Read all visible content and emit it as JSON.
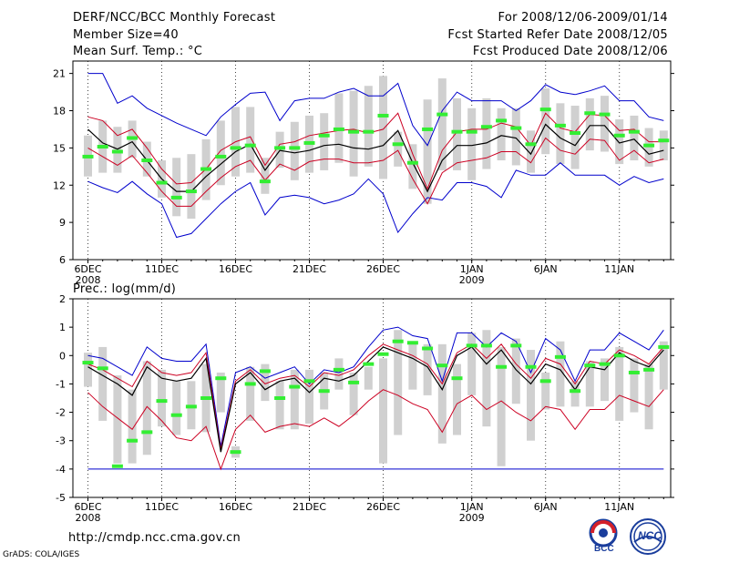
{
  "header": {
    "title": "DERF/NCC/BCC Monthly Forecast",
    "member_size": "Member Size=40",
    "variable1": "Mean Surf. Temp.: °C",
    "for_range": "For 2008/12/06-2009/01/14",
    "refer_date": "Fcst Started Refer Date 2008/12/05",
    "produced_date": "Fcst Produced Date 2008/12/06"
  },
  "footer": {
    "url": "http://cmdp.ncc.cma.gov.cn",
    "grads": "GrADS: COLA/IGES",
    "logo_bcc": "BCC",
    "logo_ncc": "NCC"
  },
  "colors": {
    "max_min": "#0000cc",
    "spread": "#cc0022",
    "mean": "#000000",
    "median": "#33ee33",
    "box": "#d0d0d0"
  },
  "chart_data": [
    {
      "type": "box",
      "title": "Mean Surf. Temp.: °C",
      "ylim": [
        6,
        22
      ],
      "yticks": [
        6,
        9,
        12,
        15,
        18,
        21
      ],
      "xticks": [
        {
          "day": 0,
          "label": "6DEC",
          "sub": "2008"
        },
        {
          "day": 5,
          "label": "11DEC",
          "sub": ""
        },
        {
          "day": 10,
          "label": "16DEC",
          "sub": ""
        },
        {
          "day": 15,
          "label": "21DEC",
          "sub": ""
        },
        {
          "day": 20,
          "label": "26DEC",
          "sub": ""
        },
        {
          "day": 26,
          "label": "1JAN",
          "sub": "2009"
        },
        {
          "day": 31,
          "label": "6JAN",
          "sub": ""
        },
        {
          "day": 36,
          "label": "11JAN",
          "sub": ""
        }
      ],
      "series": [
        {
          "name": "max",
          "values": [
            21,
            21,
            18.6,
            19.2,
            18.2,
            17.6,
            17,
            16.5,
            16,
            17.5,
            18.5,
            19.4,
            19.5,
            17.2,
            18.8,
            19,
            19,
            19.5,
            19.8,
            19.2,
            19.2,
            20.2,
            16.8,
            15.2,
            18,
            19.5,
            18.8,
            18.8,
            18.8,
            18,
            18.8,
            20.1,
            19.5,
            19.3,
            19.6,
            20,
            18.8,
            18.8,
            17.5,
            17.2
          ]
        },
        {
          "name": "upper",
          "values": [
            17.5,
            17.2,
            16,
            16.5,
            15,
            13.3,
            12.1,
            12.2,
            13.3,
            14.8,
            15.5,
            15.9,
            13.6,
            15.3,
            15.5,
            16,
            16.2,
            16.4,
            16.5,
            16.2,
            16.5,
            17.8,
            14.5,
            11.7,
            14.8,
            16.3,
            16.5,
            16.5,
            17,
            16.7,
            15.2,
            17.8,
            16.6,
            16.3,
            17.7,
            17.6,
            16.4,
            16.5,
            15.5,
            15.5
          ]
        },
        {
          "name": "mean",
          "values": [
            16.5,
            15.4,
            14.9,
            15.5,
            14,
            12.5,
            11.5,
            11.5,
            12.7,
            13.7,
            14.7,
            15.3,
            13.2,
            14.8,
            14.6,
            14.8,
            15.2,
            15.3,
            15,
            14.9,
            15.2,
            16.4,
            13.8,
            11.5,
            14,
            15.2,
            15.2,
            15.4,
            16,
            15.8,
            14.5,
            16.9,
            15.8,
            15.2,
            16.8,
            16.8,
            15.4,
            15.7,
            14.5,
            14.8
          ]
        },
        {
          "name": "lower",
          "values": [
            15,
            14.3,
            13.6,
            14.4,
            13,
            11.5,
            10.3,
            10.3,
            11.5,
            12.6,
            13.5,
            14,
            12.4,
            13.7,
            13.2,
            13.9,
            14.1,
            14.1,
            13.8,
            13.8,
            14,
            14.8,
            12.5,
            10.5,
            13,
            13.8,
            14,
            14.2,
            14.7,
            14.7,
            13.8,
            15.8,
            14.8,
            14.5,
            15.7,
            15.6,
            14,
            14.8,
            13.8,
            14.1
          ]
        },
        {
          "name": "min",
          "values": [
            12.3,
            11.8,
            11.4,
            12.3,
            11.3,
            10.5,
            7.8,
            8.1,
            9.3,
            10.5,
            11.5,
            12.2,
            9.6,
            11,
            11.2,
            11,
            10.5,
            10.8,
            11.3,
            12.5,
            11.3,
            8.2,
            9.7,
            11,
            10.8,
            12.2,
            12.2,
            11.9,
            11,
            13.2,
            12.8,
            12.8,
            13.8,
            12.8,
            12.8,
            12.8,
            12,
            12.7,
            12.2,
            12.5
          ]
        },
        {
          "name": "median",
          "values": [
            14.3,
            15.1,
            14.7,
            15.8,
            14,
            12.2,
            11,
            11.5,
            13.3,
            14.3,
            15,
            15.2,
            12.3,
            15,
            15,
            15.4,
            16,
            16.5,
            16.3,
            16.3,
            17.6,
            15.3,
            13.8,
            16.5,
            17.7,
            16.3,
            16.3,
            16.7,
            17.2,
            16.6,
            15.3,
            18.1,
            16.8,
            16.2,
            17.8,
            17.7,
            16,
            16.3,
            15.2,
            15.6
          ]
        },
        {
          "name": "box_low",
          "values": [
            12.7,
            13,
            13,
            14.2,
            12.7,
            11,
            9.5,
            9.3,
            10.8,
            12,
            12.7,
            13,
            11.3,
            13.4,
            12.4,
            13,
            13.2,
            13.8,
            12.7,
            13.5,
            12.5,
            13.5,
            11.7,
            10.5,
            13.2,
            13.2,
            12.4,
            13.3,
            14,
            13.6,
            13,
            14.5,
            13.7,
            13.3,
            14.8,
            14.7,
            13.7,
            14,
            13.5,
            14
          ]
        },
        {
          "name": "box_high",
          "values": [
            16,
            17.2,
            16.7,
            17.2,
            15.5,
            14,
            14.2,
            14.5,
            15.7,
            17.2,
            18.3,
            18.3,
            14.2,
            16.3,
            17.1,
            17.6,
            17.8,
            19.4,
            19.6,
            20,
            20.8,
            16.3,
            15.3,
            18.9,
            20.6,
            19,
            18.2,
            19,
            18.2,
            18.2,
            16.4,
            19.8,
            18.6,
            18.4,
            19,
            19.2,
            17.3,
            17.6,
            16.6,
            16.4
          ]
        }
      ]
    },
    {
      "type": "box",
      "title": "Prec.: log(mm/d)",
      "ylim": [
        -5,
        2
      ],
      "yticks": [
        -5,
        -4,
        -3,
        -2,
        -1,
        0,
        1,
        2
      ],
      "xticks": [
        {
          "day": 0,
          "label": "6DEC",
          "sub": "2008"
        },
        {
          "day": 5,
          "label": "11DEC",
          "sub": ""
        },
        {
          "day": 10,
          "label": "16DEC",
          "sub": ""
        },
        {
          "day": 15,
          "label": "21DEC",
          "sub": ""
        },
        {
          "day": 20,
          "label": "26DEC",
          "sub": ""
        },
        {
          "day": 26,
          "label": "1JAN",
          "sub": "2009"
        },
        {
          "day": 31,
          "label": "6JAN",
          "sub": ""
        },
        {
          "day": 36,
          "label": "11JAN",
          "sub": ""
        }
      ],
      "baseline": -4,
      "series": [
        {
          "name": "max",
          "values": [
            0,
            -0.1,
            -0.4,
            -0.7,
            0.3,
            -0.1,
            -0.2,
            -0.2,
            0.4,
            -3.2,
            -0.6,
            -0.4,
            -0.8,
            -0.6,
            -0.4,
            -1,
            -0.5,
            -0.6,
            -0.4,
            0.3,
            0.9,
            1,
            0.7,
            0.6,
            -0.9,
            0.8,
            0.8,
            0.3,
            0.8,
            0.5,
            -0.6,
            0.6,
            0.2,
            -0.9,
            0.2,
            0.2,
            0.8,
            0.5,
            0.2,
            0.9
          ]
        },
        {
          "name": "upper",
          "values": [
            -0.3,
            -0.5,
            -0.8,
            -1.1,
            -0.2,
            -0.6,
            -0.7,
            -0.6,
            0.1,
            -3.3,
            -0.9,
            -0.5,
            -1,
            -0.8,
            -0.7,
            -1.1,
            -0.6,
            -0.7,
            -0.5,
            0,
            0.4,
            0.2,
            0,
            -0.3,
            -1,
            0.1,
            0.4,
            -0.1,
            0.4,
            -0.3,
            -0.8,
            -0.1,
            -0.3,
            -1,
            -0.2,
            -0.3,
            0.2,
            0,
            -0.3,
            0.3
          ]
        },
        {
          "name": "mean",
          "values": [
            -0.4,
            -0.7,
            -1,
            -1.4,
            -0.4,
            -0.8,
            -0.9,
            -0.8,
            -0.1,
            -3.4,
            -1,
            -0.6,
            -1.2,
            -0.9,
            -0.8,
            -1.3,
            -0.8,
            -0.9,
            -0.7,
            -0.2,
            0.3,
            0.1,
            -0.1,
            -0.4,
            -1.2,
            0,
            0.3,
            -0.3,
            0.2,
            -0.5,
            -1,
            -0.3,
            -0.5,
            -1.2,
            -0.4,
            -0.5,
            0.1,
            -0.2,
            -0.4,
            0.2
          ]
        },
        {
          "name": "lower",
          "values": [
            -1.3,
            -1.8,
            -2.2,
            -2.6,
            -1.8,
            -2.3,
            -2.9,
            -3,
            -2.5,
            -4,
            -2.6,
            -2.1,
            -2.7,
            -2.5,
            -2.4,
            -2.5,
            -2.2,
            -2.5,
            -2.1,
            -1.6,
            -1.2,
            -1.4,
            -1.7,
            -1.9,
            -2.7,
            -1.7,
            -1.4,
            -1.9,
            -1.6,
            -2,
            -2.3,
            -1.8,
            -1.9,
            -2.6,
            -1.9,
            -1.9,
            -1.4,
            -1.6,
            -1.8,
            -1.2
          ]
        },
        {
          "name": "min",
          "values": [
            -4,
            -4,
            -4,
            -4,
            -4,
            -4,
            -4,
            -4,
            -4,
            -4,
            -4,
            -4,
            -4,
            -4,
            -4,
            -4,
            -4,
            -4,
            -4,
            -4,
            -4,
            -4,
            -4,
            -4,
            -4,
            -4,
            -4,
            -4,
            -4,
            -4,
            -4,
            -4,
            -4,
            -4,
            -4,
            -4,
            -4,
            -4,
            -4,
            -4
          ]
        },
        {
          "name": "median",
          "values": [
            -0.25,
            -0.45,
            -3.9,
            -3,
            -2.7,
            -1.6,
            -2.1,
            -1.8,
            -1.5,
            -0.8,
            -3.4,
            -1,
            -0.55,
            -1.5,
            -1.1,
            -0.9,
            -1.25,
            -0.5,
            -0.95,
            -0.3,
            0.05,
            0.5,
            0.45,
            0.25,
            -0.35,
            -0.8,
            0.35,
            0.35,
            -0.4,
            0.35,
            -0.4,
            -0.9,
            -0.05,
            -1.25,
            -0.35,
            -0.3,
            0,
            -0.6,
            -0.5,
            0.3
          ]
        },
        {
          "name": "box_low",
          "values": [
            -1.1,
            -2.3,
            -3.8,
            -3.8,
            -3.5,
            -2.5,
            -2.8,
            -2.6,
            -2.7,
            -2,
            -3.6,
            -2.3,
            -1.6,
            -2.6,
            -2.6,
            -2.4,
            -1.9,
            -1.2,
            -2.1,
            -1.2,
            -3.8,
            -2.8,
            -1.2,
            -1.4,
            -3.1,
            -2.8,
            -1.4,
            -2.5,
            -3.9,
            -1.7,
            -3,
            -1.9,
            -1.8,
            -1.8,
            -1.8,
            -1.6,
            -2.3,
            -2,
            -2.6,
            -1.2
          ]
        },
        {
          "name": "box_high",
          "values": [
            0.1,
            0.3,
            -0.7,
            -1.2,
            -0.2,
            -0.5,
            -0.9,
            -0.9,
            -0.3,
            -0.6,
            -3.2,
            -0.4,
            -0.3,
            -0.9,
            -0.5,
            -0.5,
            -0.6,
            -0.1,
            -0.6,
            -0.4,
            -0.1,
            0.9,
            0.5,
            0.4,
            0.4,
            -0.3,
            0.8,
            0.9,
            0.3,
            0.6,
            0.2,
            -0.6,
            0.5,
            -0.9,
            -0.2,
            -0.1,
            0.3,
            -0.1,
            -0.3,
            0.5
          ]
        }
      ]
    }
  ]
}
